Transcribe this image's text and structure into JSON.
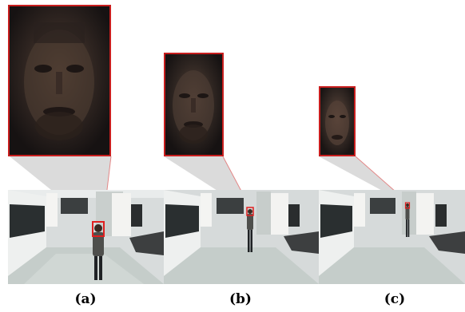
{
  "panels": [
    {
      "id": "a",
      "caption": "(a)"
    },
    {
      "id": "b",
      "caption": "(b)"
    },
    {
      "id": "c",
      "caption": "(c)"
    }
  ],
  "colors": {
    "crop_border": "#c81e1e",
    "detection_box": "#e02020",
    "zoom_cone": "#bdbdbd"
  },
  "icons": [
    "face-crop-image",
    "corridor-scene-image",
    "person-figure",
    "face-detection-box"
  ]
}
